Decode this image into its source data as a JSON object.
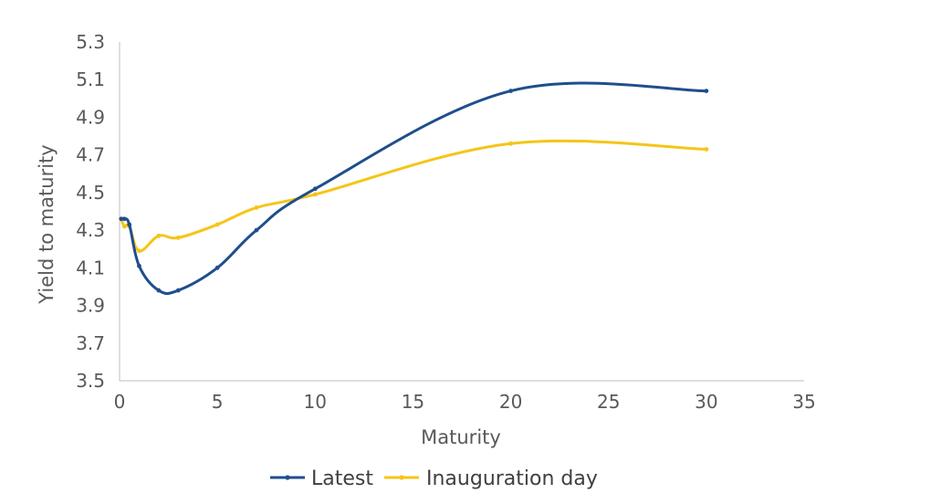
{
  "chart_data": {
    "type": "line",
    "title": "",
    "xlabel": "Maturity",
    "ylabel": "Yield to maturity",
    "xlim": [
      0,
      35
    ],
    "ylim": [
      3.5,
      5.3
    ],
    "x_ticks": [
      "0",
      "5",
      "10",
      "15",
      "20",
      "25",
      "30",
      "35"
    ],
    "y_ticks": [
      "3.5",
      "3.7",
      "3.9",
      "4.1",
      "4.3",
      "4.5",
      "4.7",
      "4.9",
      "5.1",
      "5.3"
    ],
    "grid": false,
    "legend_position": "bottom",
    "series": [
      {
        "name": "Latest",
        "color": "#1f4e8c",
        "x": [
          0.083,
          0.25,
          0.5,
          1,
          2,
          3,
          5,
          7,
          10,
          20,
          30
        ],
        "y": [
          4.36,
          4.36,
          4.33,
          4.11,
          3.98,
          3.98,
          4.1,
          4.3,
          4.52,
          5.04,
          5.04
        ]
      },
      {
        "name": "Inauguration day",
        "color": "#f5c518",
        "x": [
          0.083,
          0.25,
          0.5,
          1,
          2,
          3,
          5,
          7,
          10,
          20,
          30
        ],
        "y": [
          4.36,
          4.32,
          4.32,
          4.19,
          4.27,
          4.26,
          4.33,
          4.42,
          4.49,
          4.76,
          4.73
        ]
      }
    ]
  }
}
